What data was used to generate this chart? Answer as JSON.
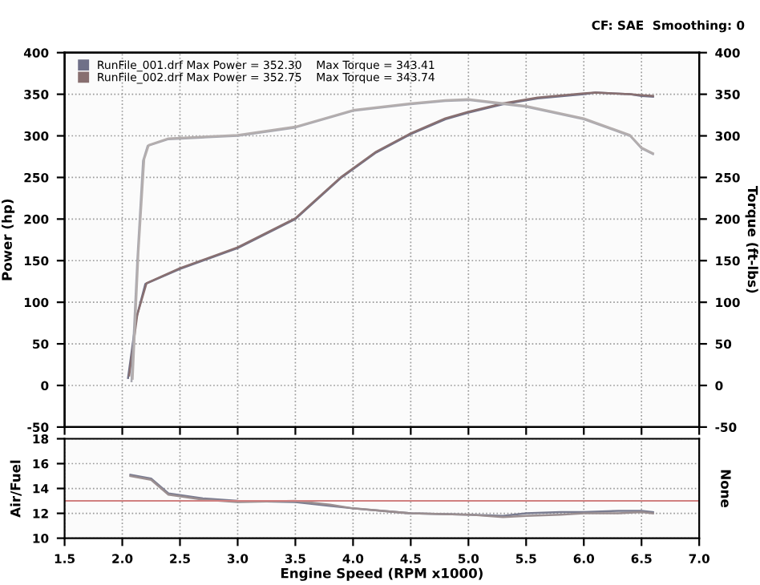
{
  "chart_data": [
    {
      "type": "line",
      "ylabel": "Power (hp)",
      "y2label": "Torque (ft-lbs)",
      "annotations": [
        "CF: SAE  Smoothing: 0"
      ],
      "xlim": [
        1.5,
        7.0
      ],
      "xticks": [
        {
          "value": 1.5,
          "label": null
        },
        {
          "value": 2,
          "label": null
        },
        {
          "value": 2.5,
          "label": null
        },
        {
          "value": 3,
          "label": null
        },
        {
          "value": 3.5,
          "label": null
        },
        {
          "value": 4,
          "label": null
        },
        {
          "value": 4.5,
          "label": null
        },
        {
          "value": 5,
          "label": null
        },
        {
          "value": 5.5,
          "label": null
        },
        {
          "value": 6,
          "label": null
        },
        {
          "value": 6.5,
          "label": null
        },
        {
          "value": 7,
          "label": null
        }
      ],
      "ylim": [
        -50,
        400
      ],
      "yticks": [
        -50,
        0,
        50,
        100,
        150,
        200,
        250,
        300,
        350,
        400
      ],
      "y2lim": [
        -50,
        400
      ],
      "y2ticks": [
        -50,
        0,
        50,
        100,
        150,
        200,
        250,
        300,
        350,
        400
      ],
      "tick_labels": "y",
      "grid": true,
      "legend": "top left",
      "line_style": "solid",
      "series": [
        {
          "name": "RunFile_001.drf Max Power = 352.30    Max Torque = 343.41",
          "color": "#6f7088",
          "x": [
            2.05,
            2.12,
            2.2,
            2.5,
            3.0,
            3.5,
            3.9,
            4.2,
            4.5,
            4.8,
            5.0,
            5.3,
            5.6,
            6.0,
            6.1,
            6.4,
            6.5,
            6.6
          ],
          "values": [
            9,
            80,
            122,
            140,
            165,
            200,
            250,
            280,
            302,
            320,
            328,
            338,
            345,
            350,
            352,
            350,
            348,
            347
          ]
        },
        {
          "color": "#a8a8b0",
          "axis": "y2",
          "x": [
            2.08,
            2.13,
            2.18,
            2.22,
            2.4,
            3.0,
            3.5,
            4.0,
            4.5,
            4.8,
            5.0,
            5.5,
            6.0,
            6.4,
            6.5,
            6.6
          ],
          "values": [
            5,
            150,
            270,
            288,
            296,
            300,
            310,
            330,
            338,
            342,
            343,
            335,
            320,
            300,
            285,
            278
          ]
        },
        {
          "name": "RunFile_002.drf Max Power = 352.75    Max Torque = 343.74",
          "color": "#886f70",
          "x": [
            2.06,
            2.13,
            2.21,
            2.5,
            3.0,
            3.5,
            3.9,
            4.2,
            4.5,
            4.8,
            5.0,
            5.3,
            5.6,
            6.0,
            6.1,
            6.4,
            6.5,
            6.6
          ],
          "values": [
            12,
            85,
            123,
            141,
            166,
            201,
            251,
            281,
            303,
            321,
            329,
            339,
            346,
            351,
            352,
            350,
            349,
            348
          ]
        },
        {
          "color": "#b4aeae",
          "axis": "y2",
          "x": [
            2.09,
            2.14,
            2.19,
            2.23,
            2.4,
            3.0,
            3.5,
            4.0,
            4.5,
            4.8,
            5.0,
            5.5,
            6.0,
            6.4,
            6.5,
            6.6
          ],
          "values": [
            8,
            160,
            272,
            289,
            297,
            301,
            311,
            331,
            339,
            343,
            344,
            336,
            321,
            301,
            286,
            279
          ]
        }
      ]
    },
    {
      "type": "line",
      "xlabel": "Engine Speed (RPM x1000)",
      "ylabel": "Air/Fuel",
      "y2label": "None",
      "xlim": [
        1.5,
        7.0
      ],
      "xticks": [
        1.5,
        {
          "value": 2,
          "label": "2.0"
        },
        2.5,
        {
          "value": 3,
          "label": "3.0"
        },
        3.5,
        {
          "value": 4,
          "label": "4.0"
        },
        4.5,
        {
          "value": 5,
          "label": "5.0"
        },
        5.5,
        {
          "value": 6,
          "label": "6.0"
        },
        6.5,
        {
          "value": 7,
          "label": "7.0"
        }
      ],
      "ylim": [
        10,
        18
      ],
      "yticks": [
        10,
        12,
        14,
        16,
        18
      ],
      "grid": true,
      "line_style": "solid",
      "ref_lines": [
        {
          "axis": "y",
          "value": 13,
          "color": "#d08080"
        }
      ],
      "series": [
        {
          "color": "#7a7c90",
          "x": [
            2.07,
            2.25,
            2.4,
            2.7,
            3.0,
            3.5,
            3.8,
            4.0,
            4.5,
            5.0,
            5.3,
            5.5,
            5.8,
            6.0,
            6.3,
            6.5,
            6.6
          ],
          "values": [
            15.1,
            14.8,
            13.6,
            13.2,
            13.0,
            12.9,
            12.6,
            12.4,
            12.0,
            11.9,
            11.8,
            12.0,
            12.1,
            12.1,
            12.2,
            12.2,
            12.1
          ]
        },
        {
          "color": "#9a8e90",
          "x": [
            2.07,
            2.25,
            2.4,
            2.7,
            3.0,
            3.5,
            3.8,
            4.0,
            4.5,
            5.0,
            5.3,
            5.5,
            5.8,
            6.0,
            6.3,
            6.5,
            6.6
          ],
          "values": [
            15.0,
            14.7,
            13.5,
            13.1,
            12.9,
            13.0,
            12.7,
            12.4,
            12.0,
            11.9,
            11.7,
            11.8,
            11.9,
            12.0,
            12.0,
            12.1,
            12.0
          ]
        }
      ]
    }
  ]
}
